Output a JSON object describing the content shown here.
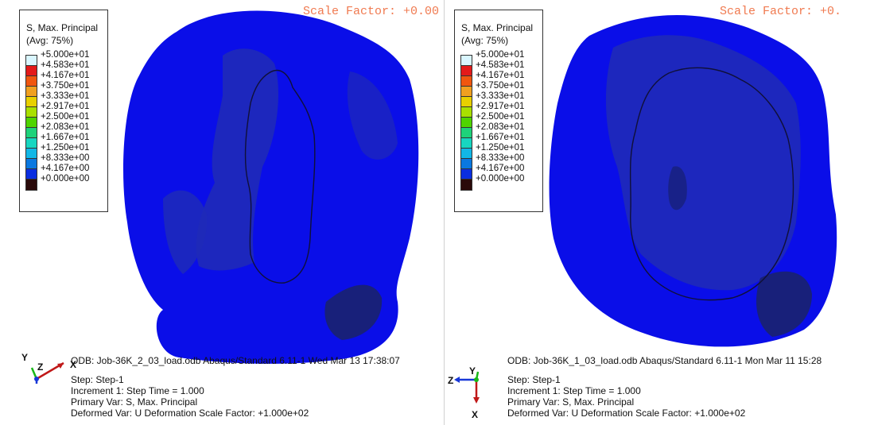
{
  "panels": [
    {
      "scale_factor": "Scale Factor: +0.00",
      "legend": {
        "title_line1": "S, Max. Principal",
        "title_line2": "(Avg: 75%)",
        "values": [
          "+5.000e+01",
          "+4.583e+01",
          "+4.167e+01",
          "+3.750e+01",
          "+3.333e+01",
          "+2.917e+01",
          "+2.500e+01",
          "+2.083e+01",
          "+1.667e+01",
          "+1.250e+01",
          "+8.333e+00",
          "+4.167e+00",
          "+0.000e+00"
        ],
        "colors": [
          "#d9f6ff",
          "#e31a1a",
          "#f0560f",
          "#f0a020",
          "#e8d000",
          "#a9e000",
          "#4fd400",
          "#1ed27a",
          "#17d6c0",
          "#12b7e6",
          "#0a78e0",
          "#0a2ee0",
          "#2a0a0a"
        ]
      },
      "odb": "ODB: Job-36K_2_03_load.odb    Abaqus/Standard 6.11-1    Wed Mar 13 17:38:07",
      "step": "Step: Step-1",
      "increment": "Increment     1: Step Time =    1.000",
      "primary_var": "Primary Var: S, Max. Principal",
      "deformed_var": "Deformed Var: U   Deformation Scale Factor: +1.000e+02",
      "triad_labels": {
        "up": "Y",
        "side": "Z",
        "down": "X"
      }
    },
    {
      "scale_factor": "Scale Factor: +0.",
      "legend": {
        "title_line1": "S, Max. Principal",
        "title_line2": "(Avg: 75%)",
        "values": [
          "+5.000e+01",
          "+4.583e+01",
          "+4.167e+01",
          "+3.750e+01",
          "+3.333e+01",
          "+2.917e+01",
          "+2.500e+01",
          "+2.083e+01",
          "+1.667e+01",
          "+1.250e+01",
          "+8.333e+00",
          "+4.167e+00",
          "+0.000e+00"
        ],
        "colors": [
          "#d9f6ff",
          "#e31a1a",
          "#f0560f",
          "#f0a020",
          "#e8d000",
          "#a9e000",
          "#4fd400",
          "#1ed27a",
          "#17d6c0",
          "#12b7e6",
          "#0a78e0",
          "#0a2ee0",
          "#2a0a0a"
        ]
      },
      "odb": "ODB: Job-36K_1_03_load.odb    Abaqus/Standard 6.11-1    Mon Mar 11 15:28",
      "step": "Step: Step-1",
      "increment": "Increment     1: Step Time =    1.000",
      "primary_var": "Primary Var: S, Max. Principal",
      "deformed_var": "Deformed Var: U   Deformation Scale Factor: +1.000e+02",
      "triad_labels": {
        "up": "Y",
        "side": "Z",
        "down": "X"
      }
    }
  ],
  "colors": {
    "contour_main": "#0a0ee8",
    "contour_dark": "#1f2ab8",
    "contour_darkest": "#18207a",
    "scale_factor_text": "#f07a50"
  }
}
